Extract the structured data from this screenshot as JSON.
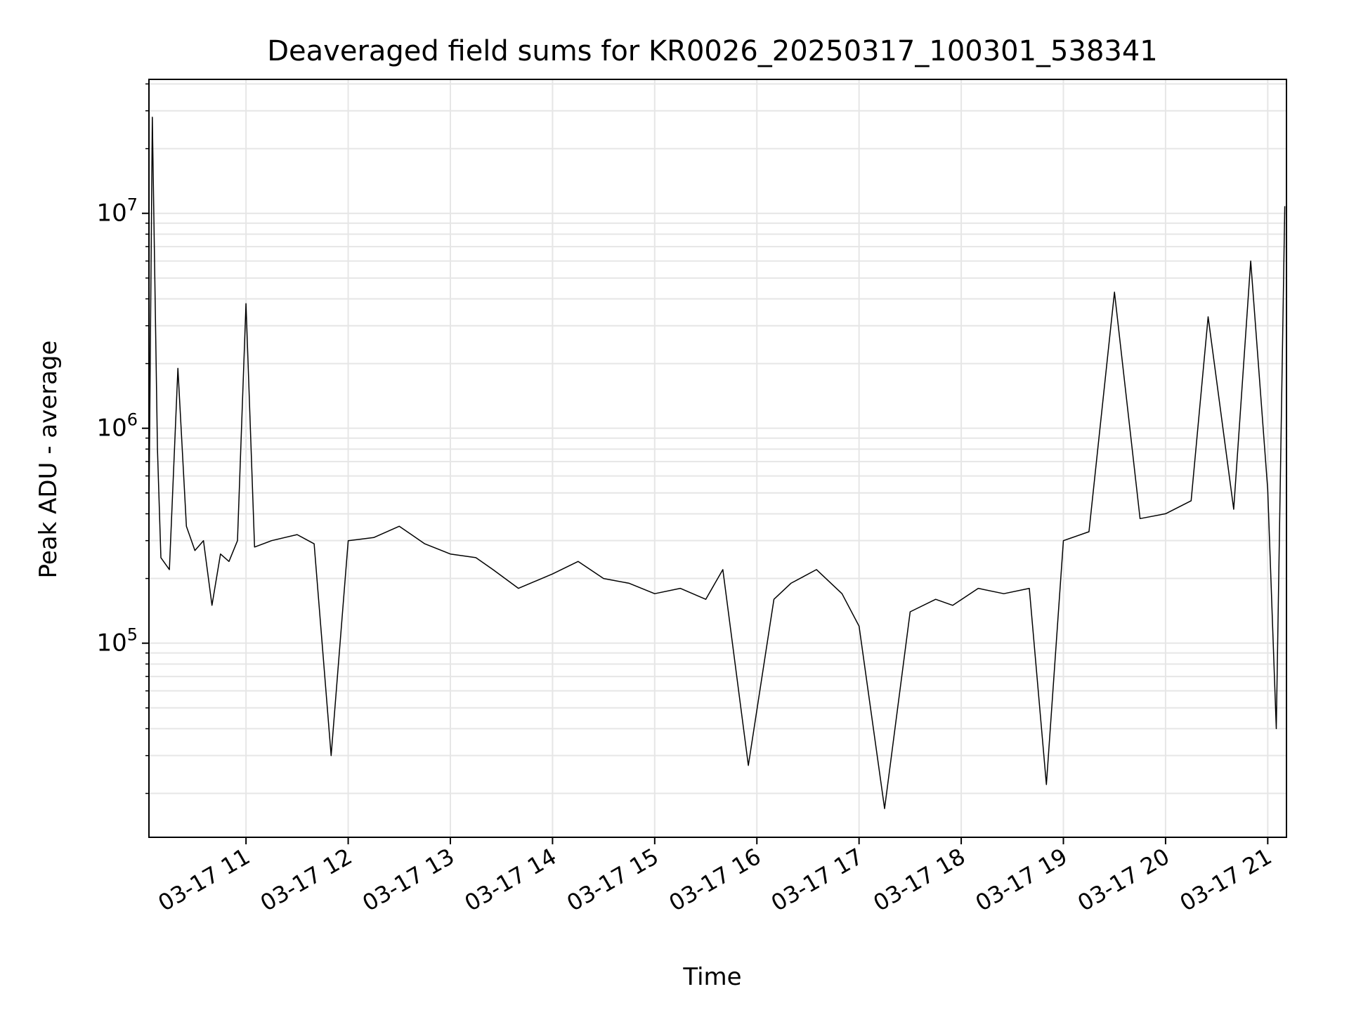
{
  "chart_data": {
    "type": "line",
    "title": "Deaveraged field sums for KR0026_20250317_100301_538341",
    "xlabel": "Time",
    "ylabel": "Peak ADU - average",
    "x_axis": {
      "type": "time",
      "range": [
        "2025-03-17 10:03",
        "2025-03-17 21:11"
      ],
      "tick_values": [
        "2025-03-17 11:00",
        "2025-03-17 12:00",
        "2025-03-17 13:00",
        "2025-03-17 14:00",
        "2025-03-17 15:00",
        "2025-03-17 16:00",
        "2025-03-17 17:00",
        "2025-03-17 18:00",
        "2025-03-17 19:00",
        "2025-03-17 20:00",
        "2025-03-17 21:00"
      ],
      "tick_labels": [
        "03-17 11",
        "03-17 12",
        "03-17 13",
        "03-17 14",
        "03-17 15",
        "03-17 16",
        "03-17 17",
        "03-17 18",
        "03-17 19",
        "03-17 20",
        "03-17 21"
      ]
    },
    "y_axis": {
      "scale": "log",
      "range": [
        12500,
        42000000
      ],
      "tick_values": [
        100000,
        1000000,
        10000000
      ],
      "tick_labels": [
        {
          "base": "10",
          "exp": "5"
        },
        {
          "base": "10",
          "exp": "6"
        },
        {
          "base": "10",
          "exp": "7"
        }
      ]
    },
    "grid": true,
    "line_color": "#000000",
    "grid_color": "#e6e6e6",
    "series": [
      {
        "x": [
          "2025-03-17 10:03",
          "2025-03-17 10:05",
          "2025-03-17 10:08",
          "2025-03-17 10:10",
          "2025-03-17 10:15",
          "2025-03-17 10:20",
          "2025-03-17 10:25",
          "2025-03-17 10:30",
          "2025-03-17 10:35",
          "2025-03-17 10:40",
          "2025-03-17 10:45",
          "2025-03-17 10:50",
          "2025-03-17 10:55",
          "2025-03-17 11:00",
          "2025-03-17 11:05",
          "2025-03-17 11:15",
          "2025-03-17 11:30",
          "2025-03-17 11:40",
          "2025-03-17 11:50",
          "2025-03-17 12:00",
          "2025-03-17 12:15",
          "2025-03-17 12:30",
          "2025-03-17 12:45",
          "2025-03-17 13:00",
          "2025-03-17 13:15",
          "2025-03-17 13:25",
          "2025-03-17 13:40",
          "2025-03-17 14:00",
          "2025-03-17 14:15",
          "2025-03-17 14:30",
          "2025-03-17 14:45",
          "2025-03-17 15:00",
          "2025-03-17 15:15",
          "2025-03-17 15:30",
          "2025-03-17 15:40",
          "2025-03-17 15:55",
          "2025-03-17 16:10",
          "2025-03-17 16:20",
          "2025-03-17 16:35",
          "2025-03-17 16:50",
          "2025-03-17 17:00",
          "2025-03-17 17:15",
          "2025-03-17 17:30",
          "2025-03-17 17:45",
          "2025-03-17 17:55",
          "2025-03-17 18:10",
          "2025-03-17 18:25",
          "2025-03-17 18:40",
          "2025-03-17 18:50",
          "2025-03-17 19:00",
          "2025-03-17 19:15",
          "2025-03-17 19:30",
          "2025-03-17 19:45",
          "2025-03-17 20:00",
          "2025-03-17 20:15",
          "2025-03-17 20:25",
          "2025-03-17 20:40",
          "2025-03-17 20:50",
          "2025-03-17 21:00",
          "2025-03-17 21:05",
          "2025-03-17 21:10"
        ],
        "y": [
          400000,
          28000000,
          800000,
          250000,
          220000,
          1900000,
          350000,
          270000,
          300000,
          150000,
          260000,
          240000,
          300000,
          3800000,
          280000,
          300000,
          320000,
          290000,
          30000,
          300000,
          310000,
          350000,
          290000,
          260000,
          250000,
          220000,
          180000,
          210000,
          240000,
          200000,
          190000,
          170000,
          180000,
          160000,
          220000,
          27000,
          160000,
          190000,
          220000,
          170000,
          120000,
          17000,
          140000,
          160000,
          150000,
          180000,
          170000,
          180000,
          22000,
          300000,
          330000,
          4300000,
          380000,
          400000,
          460000,
          3300000,
          420000,
          6000000,
          520000,
          40000,
          10800000
        ]
      }
    ]
  }
}
